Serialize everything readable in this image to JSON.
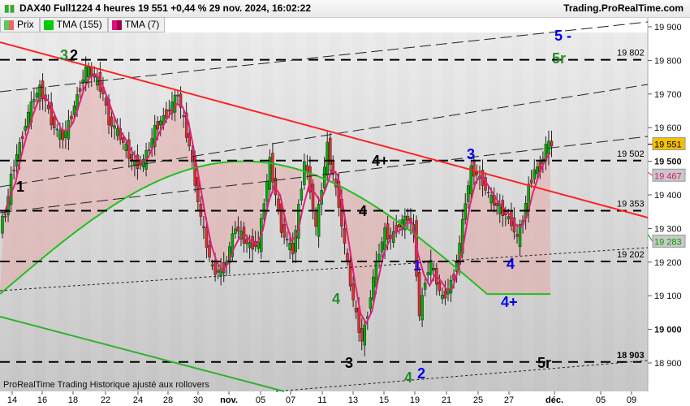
{
  "header": {
    "title": "DAX40 Full1224 4 heures 19 551 +0,44 % 29 nov. 2024, 16:02:22",
    "site": "Trading.ProRealTime.com"
  },
  "legend": [
    {
      "label": "Prix",
      "color": "#e06666"
    },
    {
      "label": "TMA (155)",
      "color": "#00c000"
    },
    {
      "label": "TMA (7)",
      "color": "#e0107a"
    }
  ],
  "footer": "ProRealTime Trading  Historique ajusté aux rollovers",
  "chart_data": {
    "type": "candlestick",
    "instrument": "DAX40 Full1224",
    "timeframe": "4 heures",
    "ylim": [
      18850,
      19920
    ],
    "y_ticks": [
      19900,
      19800,
      19700,
      19600,
      19500,
      19400,
      19300,
      19200,
      19100,
      19000,
      18900
    ],
    "x_ticks": [
      "14",
      "16",
      "18",
      "22",
      "24",
      "28",
      "30",
      "nov.",
      "05",
      "07",
      "11",
      "13",
      "15",
      "19",
      "21",
      "25",
      "27",
      "déc.",
      "05",
      "09"
    ],
    "closes": [
      19340,
      19450,
      19520,
      19580,
      19640,
      19690,
      19715,
      19680,
      19620,
      19590,
      19570,
      19610,
      19665,
      19720,
      19775,
      19760,
      19740,
      19700,
      19620,
      19600,
      19570,
      19540,
      19500,
      19490,
      19500,
      19540,
      19595,
      19620,
      19640,
      19670,
      19700,
      19620,
      19545,
      19440,
      19330,
      19250,
      19180,
      19170,
      19180,
      19240,
      19305,
      19280,
      19255,
      19250,
      19255,
      19380,
      19500,
      19400,
      19300,
      19260,
      19230,
      19360,
      19500,
      19420,
      19300,
      19420,
      19545,
      19460,
      19375,
      19250,
      19135,
      19040,
      18965,
      19050,
      19150,
      19230,
      19290,
      19270,
      19300,
      19320,
      19330,
      19300,
      19040,
      19150,
      19200,
      19140,
      19090,
      19120,
      19160,
      19250,
      19380,
      19475,
      19460,
      19440,
      19400,
      19375,
      19360,
      19340,
      19320,
      19270,
      19330,
      19420,
      19475,
      19480,
      19545,
      19551
    ],
    "last_price": 19551,
    "tma7_last": 19467,
    "tma155_last": 19283,
    "levels": [
      {
        "value": 19802,
        "label": "19 802"
      },
      {
        "value": 19502,
        "label": "19 502"
      },
      {
        "value": 19353,
        "label": "19 353"
      },
      {
        "value": 19202,
        "label": "19 202"
      },
      {
        "value": 18903,
        "label": "18 903"
      }
    ],
    "price_tags": [
      {
        "label": "19 551",
        "bg": "#f5c000",
        "color": "#000"
      },
      {
        "label": "19 467",
        "bg": "#c8c8c8",
        "color": "#e0107a"
      },
      {
        "label": "19 283",
        "bg": "#c8c8c8",
        "color": "#00a000"
      }
    ],
    "y_tick_labels": [
      "19 900",
      "19 800",
      "19 700",
      "19 600",
      "19 500",
      "19 400",
      "19 300",
      "19 200",
      "19 100",
      "19 000",
      "18 900"
    ],
    "wave_labels": [
      {
        "text": "3",
        "color": "#2a8a2a"
      },
      {
        "text": "2",
        "color": "#000"
      },
      {
        "text": "1",
        "color": "#000"
      },
      {
        "text": "4+",
        "color": "#000"
      },
      {
        "text": "4",
        "color": "#000"
      },
      {
        "text": "4",
        "color": "#2a8a2a"
      },
      {
        "text": "3",
        "color": "#000"
      },
      {
        "text": "4",
        "color": "#2a8a2a"
      },
      {
        "text": "2",
        "color": "#0000ee"
      },
      {
        "text": "1",
        "color": "#0000ee"
      },
      {
        "text": "3",
        "color": "#0000ee"
      },
      {
        "text": "4",
        "color": "#0000ee"
      },
      {
        "text": "4+",
        "color": "#0000ee"
      },
      {
        "text": "5 -",
        "color": "#0000ee"
      },
      {
        "text": "5r",
        "color": "#2a8a2a"
      },
      {
        "text": "5r",
        "color": "#000"
      }
    ],
    "colors": {
      "up": "#00b000",
      "down": "#e03030",
      "tma155": "#20c020",
      "tma7": "#e0207a",
      "trend": "#ff2020"
    }
  }
}
